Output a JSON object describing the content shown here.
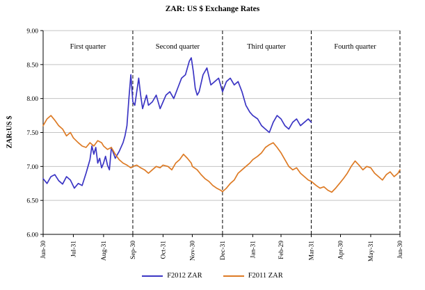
{
  "chart_data": {
    "type": "line",
    "title": "ZAR: US $ Exchange Rates",
    "ylabel": "ZAR:US $",
    "xlabel": "",
    "ylim": [
      6.0,
      9.0
    ],
    "yticks": [
      6.0,
      6.5,
      7.0,
      7.5,
      8.0,
      8.5,
      9.0
    ],
    "ytick_labels": [
      "6.00",
      "6.50",
      "7.00",
      "7.50",
      "8.00",
      "8.50",
      "9.00"
    ],
    "grid": "horizontal",
    "grid_color": "#c3c3c3",
    "legend_position": "bottom",
    "xlim": [
      0,
      366
    ],
    "x_unit": "days from Jun-30",
    "xticks": [
      {
        "label": "Jun-30",
        "d": 0
      },
      {
        "label": "Jul-31",
        "d": 31
      },
      {
        "label": "Aug-31",
        "d": 62
      },
      {
        "label": "Sep-30",
        "d": 92
      },
      {
        "label": "Oct-31",
        "d": 123
      },
      {
        "label": "Nov-30",
        "d": 153
      },
      {
        "label": "Dec-31",
        "d": 184
      },
      {
        "label": "Jan-31",
        "d": 215
      },
      {
        "label": "Feb-29",
        "d": 244
      },
      {
        "label": "Mar-31",
        "d": 275
      },
      {
        "label": "Apr-30",
        "d": 305
      },
      {
        "label": "May-31",
        "d": 336
      },
      {
        "label": "Jun-30",
        "d": 366
      }
    ],
    "dividers": [
      92,
      184,
      275,
      366
    ],
    "quarters": [
      {
        "label": "First quarter",
        "mid": 46
      },
      {
        "label": "Second quarter",
        "mid": 138
      },
      {
        "label": "Third quarter",
        "mid": 229
      },
      {
        "label": "Fourth quarter",
        "mid": 320
      }
    ],
    "series": [
      {
        "name": "F2012 ZAR",
        "color": "#3B35C4",
        "x": [
          0,
          4,
          8,
          12,
          16,
          20,
          24,
          28,
          32,
          36,
          40,
          44,
          48,
          50,
          52,
          54,
          56,
          58,
          60,
          62,
          64,
          66,
          68,
          70,
          74,
          78,
          82,
          84,
          86,
          88,
          90,
          92,
          94,
          96,
          98,
          100,
          102,
          104,
          106,
          108,
          112,
          116,
          120,
          123,
          126,
          130,
          134,
          138,
          142,
          146,
          148,
          150,
          152,
          154,
          156,
          158,
          160,
          164,
          168,
          172,
          176,
          180,
          184,
          188,
          192,
          196,
          200,
          204,
          208,
          212,
          215,
          220,
          224,
          228,
          232,
          236,
          240,
          244,
          248,
          252,
          256,
          260,
          264,
          268,
          272,
          275
        ],
        "y": [
          6.82,
          6.75,
          6.85,
          6.88,
          6.79,
          6.74,
          6.85,
          6.8,
          6.68,
          6.75,
          6.72,
          6.9,
          7.1,
          7.3,
          7.18,
          7.28,
          7.05,
          7.12,
          6.98,
          7.05,
          7.15,
          7.02,
          6.95,
          7.28,
          7.12,
          7.22,
          7.35,
          7.45,
          7.6,
          8.0,
          8.35,
          7.95,
          7.9,
          8.1,
          8.3,
          8.05,
          7.85,
          7.95,
          8.05,
          7.9,
          7.95,
          8.05,
          7.85,
          7.95,
          8.05,
          8.1,
          8.0,
          8.15,
          8.3,
          8.35,
          8.45,
          8.55,
          8.6,
          8.4,
          8.15,
          8.05,
          8.1,
          8.35,
          8.45,
          8.2,
          8.25,
          8.3,
          8.1,
          8.25,
          8.3,
          8.2,
          8.25,
          8.1,
          7.9,
          7.8,
          7.75,
          7.7,
          7.6,
          7.55,
          7.5,
          7.65,
          7.75,
          7.7,
          7.6,
          7.55,
          7.65,
          7.7,
          7.6,
          7.65,
          7.7,
          7.65
        ]
      },
      {
        "name": "F2011 ZAR",
        "color": "#DD7A24",
        "x": [
          0,
          4,
          8,
          12,
          16,
          20,
          24,
          28,
          31,
          36,
          40,
          44,
          48,
          52,
          56,
          60,
          62,
          66,
          70,
          74,
          78,
          82,
          86,
          90,
          92,
          96,
          100,
          104,
          108,
          112,
          116,
          120,
          123,
          128,
          132,
          136,
          140,
          144,
          148,
          152,
          153,
          158,
          162,
          166,
          170,
          174,
          178,
          182,
          184,
          188,
          192,
          196,
          200,
          204,
          208,
          212,
          215,
          220,
          224,
          228,
          232,
          236,
          240,
          244,
          248,
          252,
          256,
          260,
          264,
          268,
          272,
          275,
          280,
          284,
          288,
          292,
          296,
          300,
          304,
          308,
          312,
          316,
          320,
          324,
          328,
          332,
          336,
          340,
          344,
          348,
          352,
          356,
          360,
          364,
          366
        ],
        "y": [
          7.6,
          7.7,
          7.75,
          7.68,
          7.6,
          7.55,
          7.45,
          7.5,
          7.42,
          7.35,
          7.3,
          7.28,
          7.35,
          7.3,
          7.38,
          7.35,
          7.3,
          7.25,
          7.28,
          7.18,
          7.1,
          7.05,
          7.02,
          6.98,
          7.0,
          7.02,
          6.98,
          6.95,
          6.9,
          6.95,
          7.0,
          6.98,
          7.02,
          7.0,
          6.95,
          7.05,
          7.1,
          7.18,
          7.12,
          7.05,
          7.0,
          6.95,
          6.88,
          6.82,
          6.78,
          6.72,
          6.68,
          6.65,
          6.63,
          6.68,
          6.75,
          6.8,
          6.9,
          6.95,
          7.0,
          7.05,
          7.1,
          7.15,
          7.2,
          7.28,
          7.32,
          7.35,
          7.28,
          7.2,
          7.1,
          7.0,
          6.95,
          6.98,
          6.9,
          6.85,
          6.8,
          6.78,
          6.72,
          6.68,
          6.7,
          6.65,
          6.62,
          6.68,
          6.75,
          6.82,
          6.9,
          7.0,
          7.08,
          7.02,
          6.95,
          7.0,
          6.98,
          6.9,
          6.85,
          6.8,
          6.88,
          6.92,
          6.85,
          6.9,
          6.95
        ]
      }
    ]
  }
}
